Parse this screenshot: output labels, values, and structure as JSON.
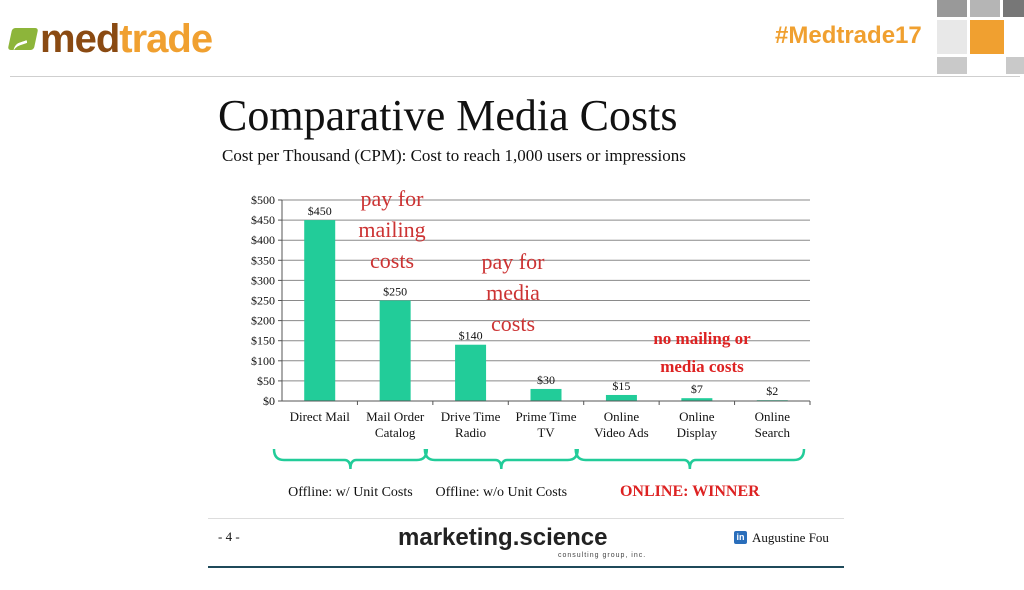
{
  "header": {
    "logo_med": "med",
    "logo_trade": "trade",
    "hashtag": "#Medtrade17",
    "colors": {
      "brand_brown": "#8a4a12",
      "brand_orange": "#f0a030",
      "brand_green": "#8db53a"
    }
  },
  "slide": {
    "title": "Comparative Media Costs",
    "subtitle": "Cost per Thousand (CPM): Cost to reach 1,000 users or impressions",
    "page_number": "- 4 -",
    "brand": "marketing.science",
    "brand_sub": "consulting group, inc.",
    "author_icon": "in",
    "author": "Augustine Fou"
  },
  "chart_data": {
    "type": "bar",
    "title": "",
    "categories": [
      [
        "Direct Mail"
      ],
      [
        "Mail Order",
        "Catalog"
      ],
      [
        "Drive Time",
        "Radio"
      ],
      [
        "Prime Time",
        "TV"
      ],
      [
        "Online",
        "Video Ads"
      ],
      [
        "Online",
        "Display"
      ],
      [
        "Online",
        "Search"
      ]
    ],
    "values": [
      450,
      250,
      140,
      30,
      15,
      7,
      2
    ],
    "data_labels": [
      "$450",
      "$250",
      "$140",
      "$30",
      "$15",
      "$7",
      "$2"
    ],
    "ylim": [
      0,
      500
    ],
    "yticks": [
      0,
      50,
      100,
      150,
      200,
      250,
      300,
      350,
      400,
      450,
      500
    ],
    "ytick_labels": [
      "$0",
      "$50",
      "$100",
      "$150",
      "$200",
      "$250",
      "$300",
      "$350",
      "$400",
      "$450",
      "$500"
    ],
    "bar_color": "#22cc99",
    "grid": true,
    "annotations": [
      {
        "lines": [
          "pay for",
          "mailing",
          "costs"
        ],
        "color": "#cc3333",
        "bold": false
      },
      {
        "lines": [
          "pay for",
          "media",
          "costs"
        ],
        "color": "#cc3333",
        "bold": false
      },
      {
        "lines": [
          "no mailing or",
          "media costs"
        ],
        "color": "#dd2222",
        "bold": true
      }
    ],
    "groups": [
      {
        "label": "Offline: w/ Unit Costs",
        "from": 0,
        "to": 1,
        "color": "#111111"
      },
      {
        "label": "Offline: w/o Unit Costs",
        "from": 2,
        "to": 3,
        "color": "#111111"
      },
      {
        "label": "ONLINE: WINNER",
        "from": 4,
        "to": 6,
        "color": "#dd2222"
      }
    ],
    "bracket_color": "#22cc99"
  }
}
